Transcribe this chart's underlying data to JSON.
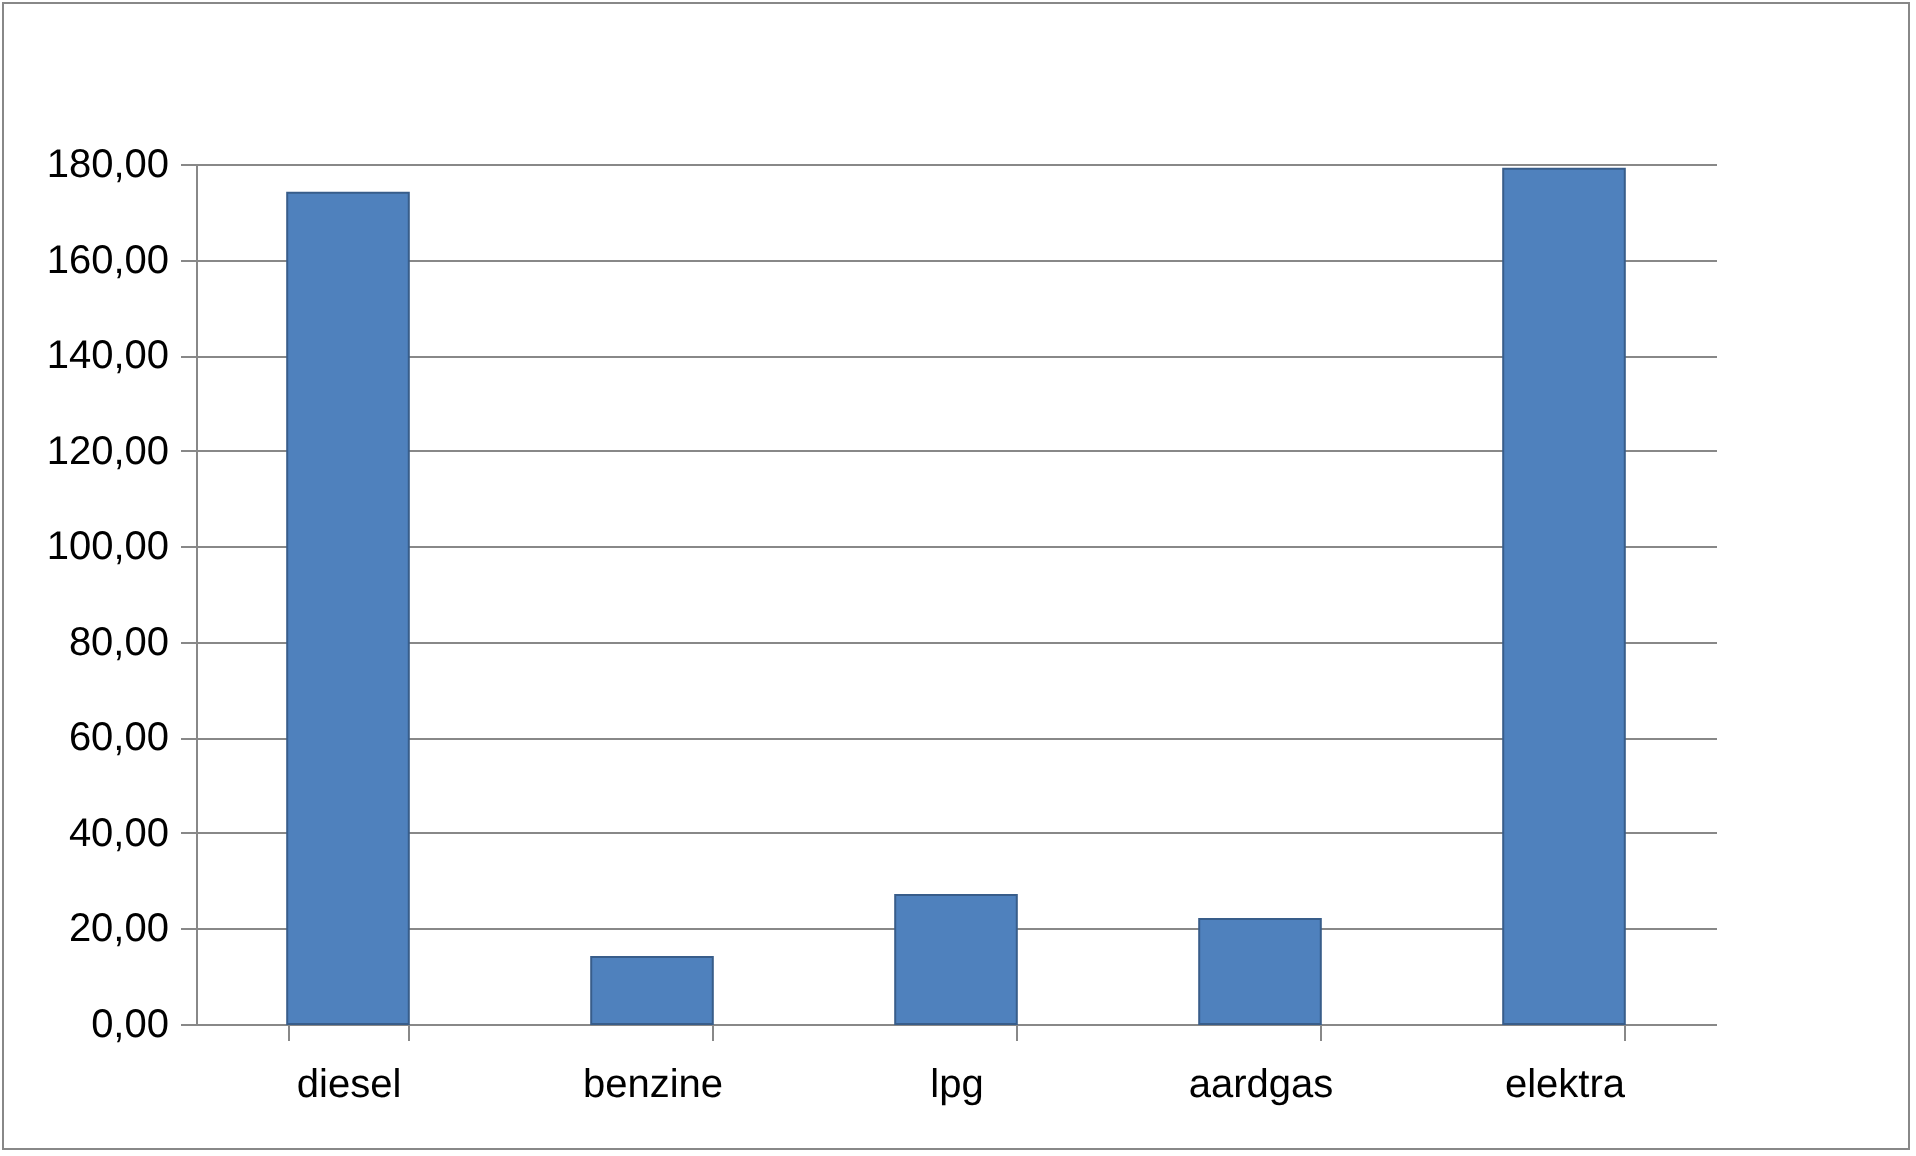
{
  "chart_data": {
    "type": "bar",
    "categories": [
      "diesel",
      "benzine",
      "lpg",
      "aardgas",
      "elektra"
    ],
    "values": [
      174,
      14,
      27,
      22,
      179
    ],
    "color": "#4f81bd",
    "ylim": [
      0,
      180
    ],
    "yticks": [
      {
        "value": 0,
        "label": "0,00"
      },
      {
        "value": 20,
        "label": "20,00"
      },
      {
        "value": 40,
        "label": "40,00"
      },
      {
        "value": 60,
        "label": "60,00"
      },
      {
        "value": 80,
        "label": "80,00"
      },
      {
        "value": 100,
        "label": "100,00"
      },
      {
        "value": 120,
        "label": "120,00"
      },
      {
        "value": 140,
        "label": "140,00"
      },
      {
        "value": 160,
        "label": "160,00"
      },
      {
        "value": 180,
        "label": "180,00"
      }
    ],
    "grid": "y"
  }
}
